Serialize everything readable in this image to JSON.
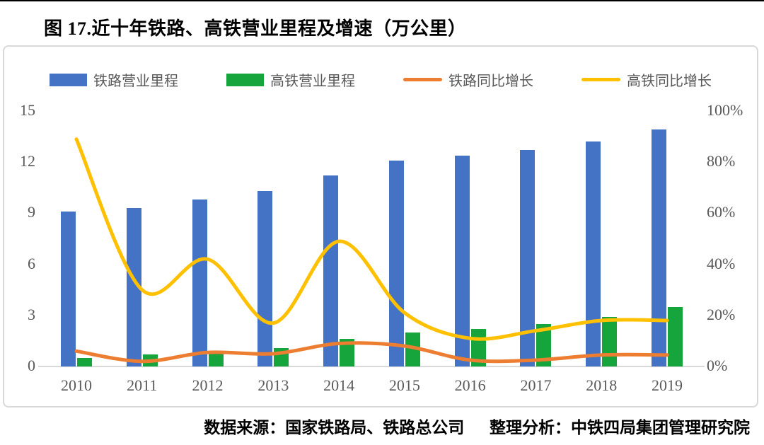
{
  "page": {
    "title": "图 17.近十年铁路、高铁营业里程及增速（万公里）",
    "source": {
      "data_source": "数据来源：国家铁路局、铁路总公司",
      "analysis": "整理分析：中铁四局集团管理研究院"
    }
  },
  "colors": {
    "railway_bar": "#4472C4",
    "hsr_bar": "#16A43C",
    "railway_line": "#ED7D31",
    "hsr_line": "#FFC000",
    "axis_text": "#595959",
    "chart_border": "#D9D9D9",
    "rule": "#000000"
  },
  "chart_data": {
    "type": "combo-bar-line",
    "title": "图 17.近十年铁路、高铁营业里程及增速（万公里）",
    "categories": [
      "2010",
      "2011",
      "2012",
      "2013",
      "2014",
      "2015",
      "2016",
      "2017",
      "2018",
      "2019"
    ],
    "series": [
      {
        "id": "railway-mileage",
        "name": "铁路营业里程",
        "type": "bar",
        "axis": "left",
        "color": "#4472C4",
        "values": [
          9.1,
          9.3,
          9.8,
          10.3,
          11.2,
          12.1,
          12.4,
          12.7,
          13.2,
          13.9
        ]
      },
      {
        "id": "hsr-mileage",
        "name": "高铁营业里程",
        "type": "bar",
        "axis": "left",
        "color": "#16A43C",
        "values": [
          0.5,
          0.7,
          0.9,
          1.1,
          1.6,
          2.0,
          2.2,
          2.5,
          2.9,
          3.5
        ]
      },
      {
        "id": "railway-growth",
        "name": "铁路同比增长",
        "type": "line",
        "axis": "right",
        "color": "#ED7D31",
        "values": [
          6,
          2,
          5.5,
          5,
          9,
          8,
          2.5,
          2.5,
          4.5,
          4.5
        ]
      },
      {
        "id": "hsr-growth",
        "name": "高铁同比增长",
        "type": "line",
        "axis": "right",
        "color": "#FFC000",
        "values": [
          89,
          30,
          42,
          17,
          49,
          21,
          11,
          14,
          18,
          18
        ]
      }
    ],
    "left_axis": {
      "unit": "万公里",
      "tick_labels": [
        "0",
        "3",
        "6",
        "9",
        "12",
        "15"
      ],
      "tick_values": [
        0,
        3,
        6,
        9,
        12,
        15
      ],
      "min": 0,
      "max": 15
    },
    "right_axis": {
      "tick_labels": [
        "0%",
        "20%",
        "40%",
        "60%",
        "80%",
        "100%"
      ],
      "tick_values": [
        0,
        20,
        40,
        60,
        80,
        100
      ],
      "min": 0,
      "max": 100
    },
    "grid": false,
    "legend_position": "top"
  }
}
